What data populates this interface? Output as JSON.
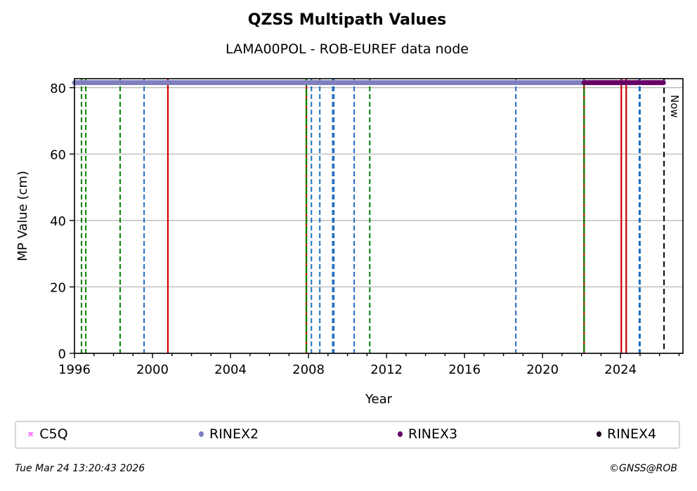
{
  "chart_data": {
    "type": "scatter",
    "title": "QZSS Multipath Values",
    "subtitle": "LAMA00POL - ROB-EUREF data node",
    "xlabel": "Year",
    "ylabel": "MP Value (cm)",
    "xlim": [
      1996,
      2027.2
    ],
    "ylim": [
      0,
      82.7
    ],
    "x_ticks": [
      1996,
      2000,
      2004,
      2008,
      2012,
      2016,
      2020,
      2024
    ],
    "x_tick_labels": [
      "1996",
      "2000",
      "2004",
      "2008",
      "2012",
      "2016",
      "2020",
      "2024"
    ],
    "y_ticks": [
      0,
      20,
      40,
      60,
      80
    ],
    "y_tick_labels": [
      "0",
      "20",
      "40",
      "60",
      "80"
    ],
    "grid": "horizontal",
    "legend_position": "bottom",
    "series": [
      {
        "name": "C5Q",
        "color": "#ff77ff",
        "marker": "x",
        "segments": []
      },
      {
        "name": "RINEX2",
        "color": "#7f7fbf",
        "marker": "o",
        "segments": [
          [
            1996.0,
            2022.13,
            81.5
          ]
        ]
      },
      {
        "name": "RINEX3",
        "color": "#660066",
        "marker": "o",
        "segments": [
          [
            2022.13,
            2024.98,
            81.5
          ],
          [
            2025.1,
            2026.2,
            81.5
          ]
        ]
      },
      {
        "name": "RINEX4",
        "color": "#220022",
        "marker": "o",
        "segments": []
      }
    ],
    "event_lines": [
      {
        "x": 1996.36,
        "type": "green-dashed"
      },
      {
        "x": 1996.58,
        "type": "green-dashed"
      },
      {
        "x": 1998.34,
        "type": "green-dashed"
      },
      {
        "x": 1999.57,
        "type": "blue-dashed"
      },
      {
        "x": 2000.79,
        "type": "red-solid"
      },
      {
        "x": 2007.89,
        "type": "red-green"
      },
      {
        "x": 2008.15,
        "type": "blue-dashed"
      },
      {
        "x": 2008.58,
        "type": "blue-dashed"
      },
      {
        "x": 2009.24,
        "type": "blue-dashed"
      },
      {
        "x": 2009.3,
        "type": "blue-dashed"
      },
      {
        "x": 2010.34,
        "type": "blue-dashed"
      },
      {
        "x": 2011.14,
        "type": "green-dashed"
      },
      {
        "x": 2018.63,
        "type": "blue-dashed"
      },
      {
        "x": 2022.13,
        "type": "red-green"
      },
      {
        "x": 2024.04,
        "type": "red-solid"
      },
      {
        "x": 2024.29,
        "type": "red-solid"
      },
      {
        "x": 2024.96,
        "type": "blue-dashed"
      },
      {
        "x": 2025.0,
        "type": "blue-dashed"
      },
      {
        "x": 2026.23,
        "type": "now"
      }
    ],
    "now_label": "Now",
    "colors": {
      "green": "#008000",
      "blue": "#1f6fbf",
      "red": "#cc0000",
      "now": "#000000",
      "grid": "#b0b0b0"
    }
  },
  "legend": {
    "items": [
      {
        "label": "C5Q",
        "color": "#ff77ff"
      },
      {
        "label": "RINEX2",
        "color": "#7f7fbf"
      },
      {
        "label": "RINEX3",
        "color": "#660066"
      },
      {
        "label": "RINEX4",
        "color": "#220022"
      }
    ]
  },
  "footer": {
    "timestamp": "Tue Mar 24 13:20:43 2026",
    "copyright": "©GNSS@ROB"
  }
}
